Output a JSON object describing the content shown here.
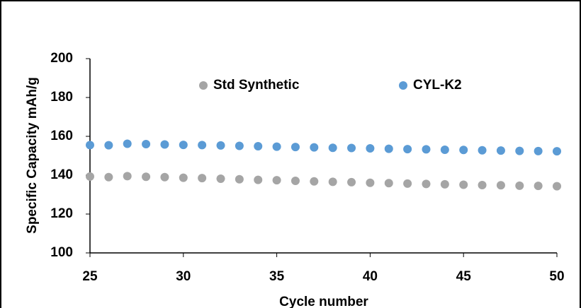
{
  "chart_data": {
    "type": "scatter",
    "x_label": "Cycle number",
    "y_label": "Specific Capacity mAh/g",
    "x": [
      25,
      26,
      27,
      28,
      29,
      30,
      31,
      32,
      33,
      34,
      35,
      36,
      37,
      38,
      39,
      40,
      41,
      42,
      43,
      44,
      45,
      46,
      47,
      48,
      49,
      50
    ],
    "series": [
      {
        "name": "Std Synthetic",
        "color": "#a5a5a5",
        "values": [
          139.3,
          139.0,
          139.5,
          139.2,
          139.0,
          138.7,
          138.5,
          138.2,
          137.9,
          137.6,
          137.4,
          137.1,
          136.8,
          136.6,
          136.4,
          136.1,
          135.9,
          135.7,
          135.5,
          135.3,
          135.1,
          134.9,
          134.8,
          134.6,
          134.5,
          134.3
        ]
      },
      {
        "name": "CYL-K2",
        "color": "#5b9bd5",
        "values": [
          155.5,
          155.4,
          156.2,
          156.0,
          155.8,
          155.6,
          155.5,
          155.3,
          155.1,
          154.9,
          154.7,
          154.5,
          154.3,
          154.1,
          154.0,
          153.8,
          153.6,
          153.4,
          153.3,
          153.1,
          153.0,
          152.8,
          152.7,
          152.5,
          152.4,
          152.3
        ]
      }
    ],
    "xlim": [
      25,
      50
    ],
    "xticks": [
      25,
      30,
      35,
      40,
      45,
      50
    ],
    "ylim": [
      100,
      200
    ],
    "yticks": [
      100,
      120,
      140,
      160,
      180,
      200
    ],
    "grid": false,
    "legend": "top"
  }
}
